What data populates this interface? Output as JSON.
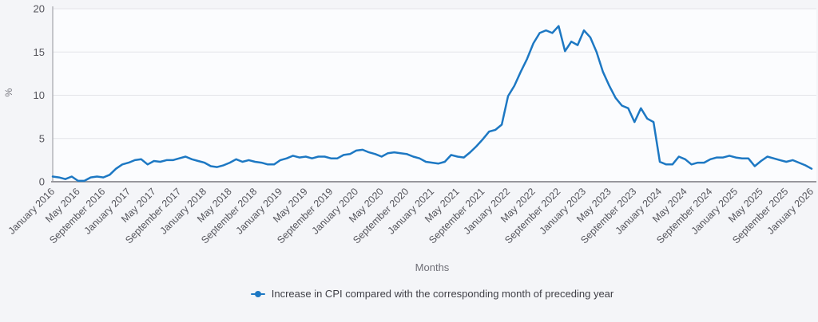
{
  "chart": {
    "y_axis_title": "%",
    "x_axis_title": "Months",
    "legend_label": "Increase in CPI compared with the corresponding month of preceding year"
  },
  "colors": {
    "line": "#1d78c3",
    "page_background": "#f4f5f8",
    "plot_background": "#fbfcfe",
    "gridline": "#e3e4e8",
    "x_axis_line": "#97979c",
    "y_axis_line": "#b4b5ba",
    "tick_label": "#55555c"
  },
  "chart_data": {
    "type": "line",
    "title": "",
    "xlabel": "Months",
    "ylabel": "%",
    "ylim": [
      0,
      20
    ],
    "y_ticks": [
      0,
      5,
      10,
      15,
      20
    ],
    "grid": "horizontal",
    "legend_position": "bottom-center",
    "series_name": "Increase in CPI compared with the corresponding month of preceding year",
    "x_start": "January 2016",
    "x_end": "January 2026",
    "x_frequency": "monthly",
    "x_tick_every_n_months": 4,
    "x_tick_labels": [
      "January 2016",
      "May 2016",
      "September 2016",
      "January 2017",
      "May 2017",
      "September 2017",
      "January 2018",
      "May 2018",
      "September 2018",
      "January 2019",
      "May 2019",
      "September 2019",
      "January 2020",
      "May 2020",
      "September 2020",
      "January 2021",
      "May 2021",
      "September 2021",
      "January 2022",
      "May 2022",
      "September 2022",
      "January 2023",
      "May 2023",
      "September 2023",
      "January 2024",
      "May 2024",
      "September 2024",
      "January 2025",
      "May 2025",
      "September 2025",
      "January 2026"
    ],
    "values": [
      0.6,
      0.5,
      0.3,
      0.6,
      0.1,
      0.1,
      0.5,
      0.6,
      0.5,
      0.8,
      1.5,
      2.0,
      2.2,
      2.5,
      2.6,
      2.0,
      2.4,
      2.3,
      2.5,
      2.5,
      2.7,
      2.9,
      2.6,
      2.4,
      2.2,
      1.8,
      1.7,
      1.9,
      2.2,
      2.6,
      2.3,
      2.5,
      2.3,
      2.2,
      2.0,
      2.0,
      2.5,
      2.7,
      3.0,
      2.8,
      2.9,
      2.7,
      2.9,
      2.9,
      2.7,
      2.7,
      3.1,
      3.2,
      3.6,
      3.7,
      3.4,
      3.2,
      2.9,
      3.3,
      3.4,
      3.3,
      3.2,
      2.9,
      2.7,
      2.3,
      2.2,
      2.1,
      2.3,
      3.1,
      2.9,
      2.8,
      3.4,
      4.1,
      4.9,
      5.8,
      6.0,
      6.6,
      9.9,
      11.1,
      12.7,
      14.2,
      16.0,
      17.2,
      17.5,
      17.2,
      18.0,
      15.1,
      16.2,
      15.8,
      17.5,
      16.7,
      15.0,
      12.7,
      11.1,
      9.7,
      8.8,
      8.5,
      6.9,
      8.5,
      7.3,
      6.9,
      2.3,
      2.0,
      2.0,
      2.9,
      2.6,
      2.0,
      2.2,
      2.2,
      2.6,
      2.8,
      2.8,
      3.0,
      2.8,
      2.7,
      2.7,
      1.8,
      2.4,
      2.9,
      2.7,
      2.5,
      2.3,
      2.5,
      2.2,
      1.9,
      1.5
    ]
  }
}
